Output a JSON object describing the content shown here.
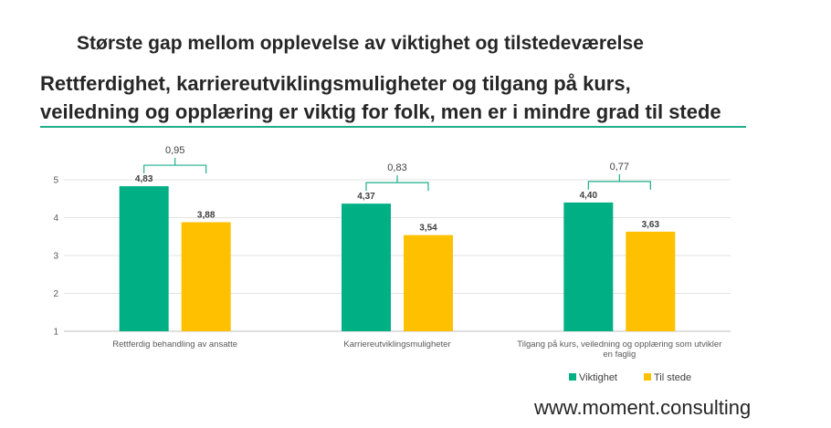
{
  "title": "Største gap mellom opplevelse av viktighet og tilstedeværelse",
  "subtitle_line1": "Rettferdighet, karriereutviklingsmuligheter og tilgang på kurs,",
  "subtitle_line2": "veiledning og opplæring er viktig for folk, men er i mindre grad til stede",
  "footer": "www.moment.consulting",
  "colors": {
    "series1": "#00b084",
    "series2": "#ffc000",
    "bracket": "#1fae8a"
  },
  "chart_data": {
    "type": "bar",
    "categories": [
      [
        "Rettferdig behandling av ansatte"
      ],
      [
        "Karriereutviklingsmuligheter"
      ],
      [
        "Tilgang på kurs, veiledning og opplæring som utvikler",
        "en faglig"
      ]
    ],
    "series": [
      {
        "name": "Viktighet",
        "values": [
          4.83,
          4.37,
          4.4
        ],
        "labels": [
          "4,83",
          "4,37",
          "4,40"
        ]
      },
      {
        "name": "Til stede",
        "values": [
          3.88,
          3.54,
          3.63
        ],
        "labels": [
          "3,88",
          "3,54",
          "3,63"
        ]
      }
    ],
    "gaps": [
      "0,95",
      "0,83",
      "0,77"
    ],
    "yticks": [
      1,
      2,
      3,
      4,
      5
    ],
    "ylim": [
      1,
      5
    ],
    "legend_position": "bottom-right",
    "grid": true
  }
}
